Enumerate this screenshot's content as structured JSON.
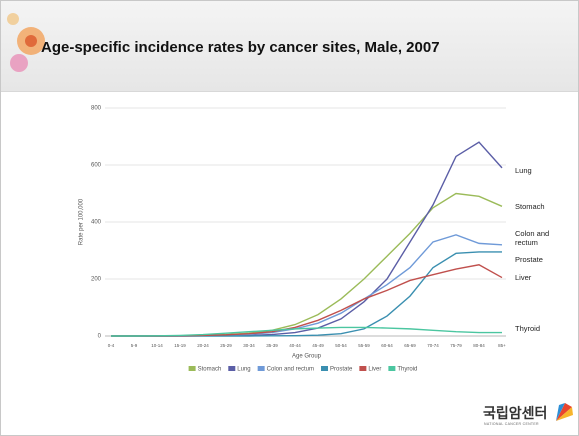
{
  "chart_data": {
    "type": "line",
    "title": "Age-specific incidence rates by cancer sites, Male, 2007",
    "x_label": "Age Group",
    "y_label": "Rate per 100,000",
    "categories": [
      "0-4",
      "5-9",
      "10-14",
      "15-19",
      "20-24",
      "25-29",
      "30-34",
      "35-39",
      "40-44",
      "45-49",
      "50-54",
      "55-59",
      "60-64",
      "65-69",
      "70-74",
      "75-79",
      "80-84",
      "85+"
    ],
    "series": [
      {
        "name": "Stomach",
        "color": "#9bbb59",
        "values": [
          0,
          0,
          0,
          0.5,
          2,
          5,
          10,
          20,
          40,
          75,
          130,
          200,
          280,
          360,
          450,
          500,
          490,
          455
        ]
      },
      {
        "name": "Lung",
        "color": "#5b5ea6",
        "values": [
          0,
          0,
          0,
          0,
          0.5,
          1,
          2,
          5,
          12,
          28,
          60,
          120,
          200,
          330,
          460,
          630,
          680,
          590
        ]
      },
      {
        "name": "Colon and rectum",
        "color": "#6f9ad8",
        "values": [
          0,
          0,
          0,
          0.5,
          1,
          3,
          6,
          12,
          25,
          45,
          80,
          130,
          180,
          240,
          330,
          355,
          325,
          320
        ]
      },
      {
        "name": "Prostate",
        "color": "#3a8fb0",
        "values": [
          0,
          0,
          0,
          0,
          0,
          0,
          0,
          0.5,
          1,
          3,
          8,
          25,
          70,
          140,
          240,
          290,
          295,
          295
        ]
      },
      {
        "name": "Liver",
        "color": "#c0504d",
        "values": [
          0,
          0,
          0,
          0.5,
          2,
          4,
          8,
          15,
          30,
          55,
          90,
          130,
          160,
          195,
          215,
          235,
          250,
          205
        ]
      },
      {
        "name": "Thyroid",
        "color": "#4bc6a0",
        "values": [
          0,
          0,
          0.5,
          2,
          5,
          10,
          15,
          20,
          25,
          28,
          30,
          30,
          28,
          25,
          20,
          15,
          12,
          12
        ]
      }
    ],
    "ylim": [
      0,
      800
    ],
    "yticks": [
      0,
      200,
      400,
      600,
      800
    ],
    "grid": true,
    "annotations": [
      "Lung",
      "Stomach",
      "Colon and rectum",
      "Prostate",
      "Liver",
      "Thyroid"
    ]
  },
  "logo": {
    "name": "국립암센터",
    "subtitle": "NATIONAL CANCER CENTER"
  }
}
